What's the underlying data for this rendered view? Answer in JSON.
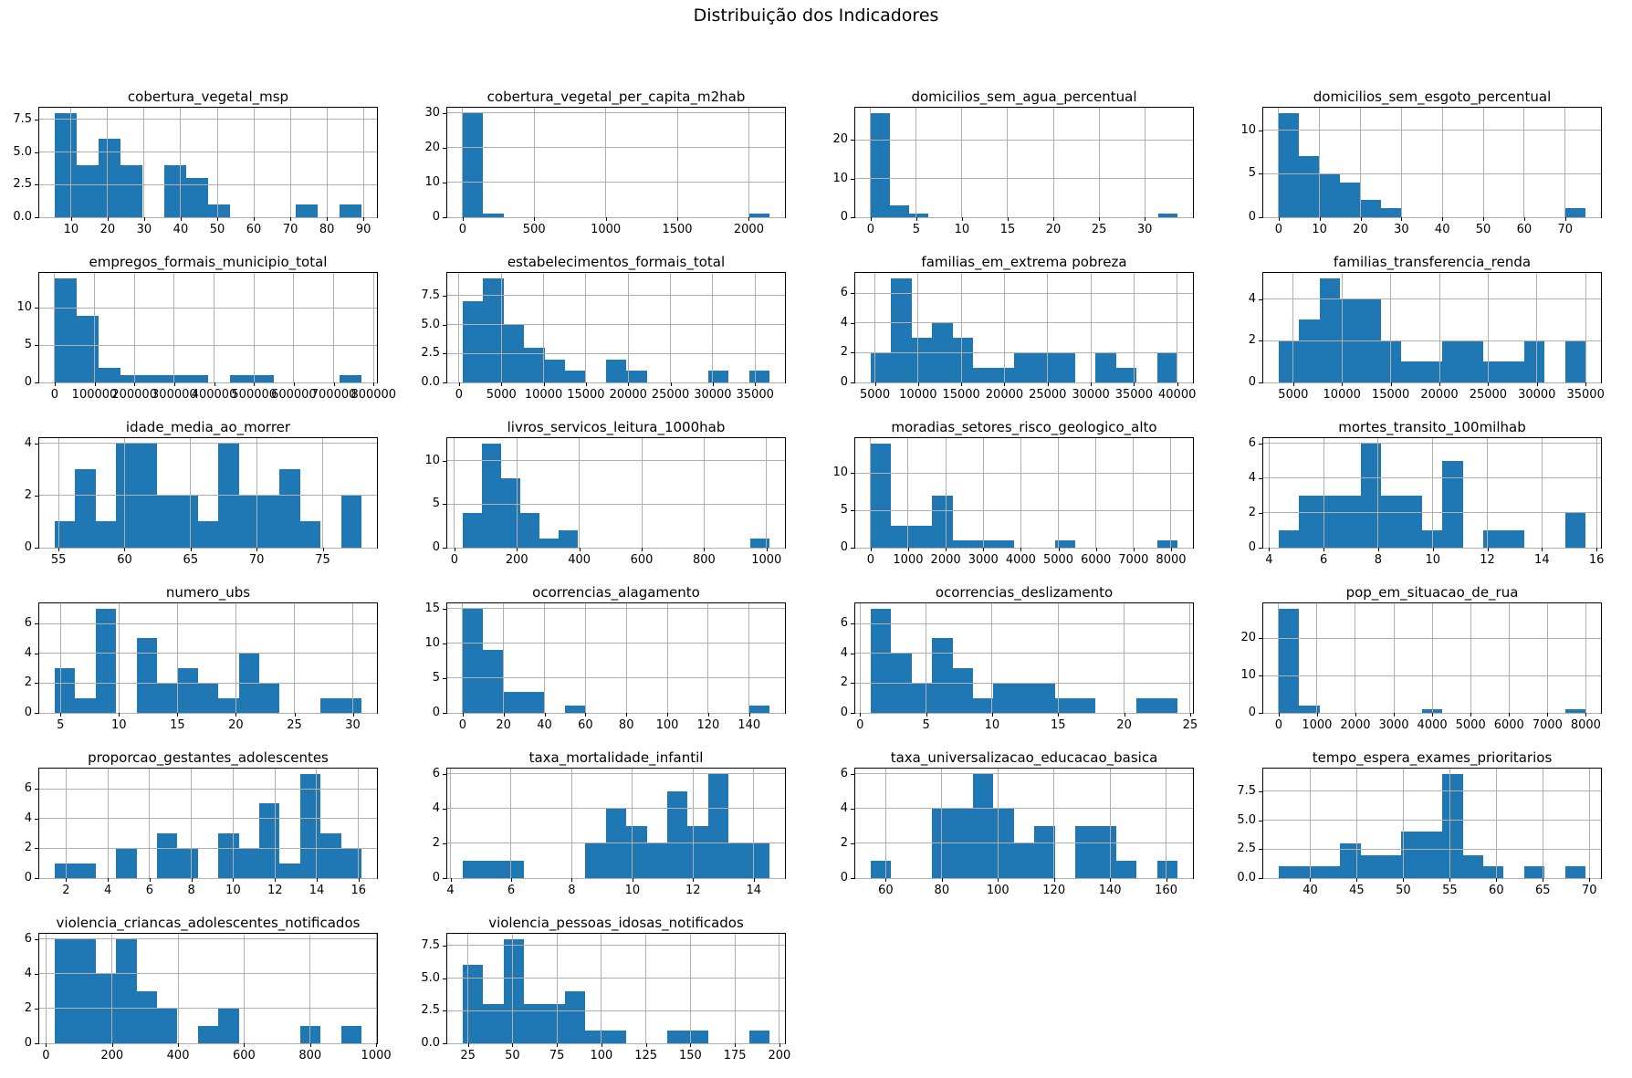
{
  "suptitle": "Distribuição dos Indicadores",
  "colors": {
    "bar": "#1f77b4",
    "grid": "#b0b0b0",
    "spine": "#000000",
    "background": "#ffffff",
    "text": "#000000"
  },
  "chart_data": [
    {
      "type": "bar",
      "title": "cobertura_vegetal_msp",
      "bin_start": 5.5,
      "bin_width": 6.0,
      "values": [
        8,
        4,
        6,
        4,
        0,
        4,
        3,
        1,
        0,
        0,
        0,
        1,
        0,
        1
      ],
      "x_ticks": [
        10,
        20,
        30,
        40,
        50,
        60,
        70,
        80,
        90
      ],
      "y_ticks": [
        0,
        2.5,
        5,
        7.5
      ],
      "y_tick_labels": [
        "0.0",
        "2.5",
        "5.0",
        "7.5"
      ]
    },
    {
      "type": "bar",
      "title": "cobertura_vegetal_per_capita_m2hab",
      "bin_start": 0,
      "bin_width": 143,
      "values": [
        30,
        1,
        0,
        0,
        0,
        0,
        0,
        0,
        0,
        0,
        0,
        0,
        0,
        0,
        1
      ],
      "x_ticks": [
        0,
        500,
        1000,
        1500,
        2000
      ],
      "y_ticks": [
        0,
        10,
        20,
        30
      ],
      "y_tick_labels": [
        "0",
        "10",
        "20",
        "30"
      ]
    },
    {
      "type": "bar",
      "title": "domicilios_sem_agua_percentual",
      "bin_start": 0,
      "bin_width": 2.1,
      "values": [
        27,
        3,
        1,
        0,
        0,
        0,
        0,
        0,
        0,
        0,
        0,
        0,
        0,
        0,
        0,
        1
      ],
      "x_ticks": [
        0,
        5,
        10,
        15,
        20,
        25,
        30
      ],
      "y_ticks": [
        0,
        10,
        20
      ],
      "y_tick_labels": [
        "0",
        "10",
        "20"
      ]
    },
    {
      "type": "bar",
      "title": "domicilios_sem_esgoto_percentual",
      "bin_start": 0,
      "bin_width": 5,
      "values": [
        12,
        7,
        5,
        4,
        2,
        1,
        0,
        0,
        0,
        0,
        0,
        0,
        0,
        0,
        1
      ],
      "x_ticks": [
        0,
        10,
        20,
        30,
        40,
        50,
        60,
        70
      ],
      "y_ticks": [
        0,
        5,
        10
      ],
      "y_tick_labels": [
        "0",
        "5",
        "10"
      ]
    },
    {
      "type": "bar",
      "title": "empregos_formais_municipio_total",
      "bin_start": 0,
      "bin_width": 55000,
      "values": [
        14,
        9,
        2,
        1,
        1,
        1,
        1,
        0,
        1,
        1,
        0,
        0,
        0,
        1
      ],
      "x_ticks": [
        0,
        100000,
        200000,
        300000,
        400000,
        500000,
        600000,
        700000,
        800000
      ],
      "y_ticks": [
        0,
        5,
        10
      ],
      "y_tick_labels": [
        "0",
        "5",
        "10"
      ]
    },
    {
      "type": "bar",
      "title": "estabelecimentos_formais_total",
      "bin_start": 420,
      "bin_width": 2420,
      "values": [
        7,
        9,
        5,
        3,
        2,
        1,
        0,
        2,
        1,
        0,
        0,
        0,
        1,
        0,
        1
      ],
      "x_ticks": [
        0,
        5000,
        10000,
        15000,
        20000,
        25000,
        30000,
        35000
      ],
      "y_ticks": [
        0,
        2.5,
        5,
        7.5
      ],
      "y_tick_labels": [
        "0.0",
        "2.5",
        "5.0",
        "7.5"
      ]
    },
    {
      "type": "bar",
      "title": "familias_em_extrema pobreza",
      "bin_start": 4500,
      "bin_width": 2370,
      "values": [
        2,
        7,
        3,
        4,
        3,
        1,
        1,
        2,
        2,
        2,
        0,
        2,
        1,
        0,
        2
      ],
      "x_ticks": [
        5000,
        10000,
        15000,
        20000,
        25000,
        30000,
        35000,
        40000
      ],
      "y_ticks": [
        0,
        2,
        4,
        6
      ],
      "y_tick_labels": [
        "0",
        "2",
        "4",
        "6"
      ]
    },
    {
      "type": "bar",
      "title": "familias_transferencia_renda",
      "bin_start": 3500,
      "bin_width": 2100,
      "values": [
        2,
        3,
        5,
        4,
        4,
        2,
        1,
        1,
        2,
        2,
        1,
        1,
        2,
        0,
        2
      ],
      "x_ticks": [
        5000,
        10000,
        15000,
        20000,
        25000,
        30000,
        35000
      ],
      "y_ticks": [
        0,
        2,
        4
      ],
      "y_tick_labels": [
        "0",
        "2",
        "4"
      ]
    },
    {
      "type": "bar",
      "title": "idade_media_ao_morrer",
      "bin_start": 54.7,
      "bin_width": 1.55,
      "values": [
        1,
        3,
        1,
        4,
        4,
        2,
        2,
        1,
        4,
        2,
        2,
        3,
        1,
        0,
        2
      ],
      "x_ticks": [
        55,
        60,
        65,
        70,
        75
      ],
      "y_ticks": [
        0,
        2,
        4
      ],
      "y_tick_labels": [
        "0",
        "2",
        "4"
      ]
    },
    {
      "type": "bar",
      "title": "livros_servicos_leitura_1000hab",
      "bin_start": 26,
      "bin_width": 61.5,
      "values": [
        4,
        12,
        8,
        4,
        1,
        2,
        0,
        0,
        0,
        0,
        0,
        0,
        0,
        0,
        0,
        1
      ],
      "x_ticks": [
        0,
        200,
        400,
        600,
        800,
        1000
      ],
      "y_ticks": [
        0,
        5,
        10
      ],
      "y_tick_labels": [
        "0",
        "5",
        "10"
      ]
    },
    {
      "type": "bar",
      "title": "moradias_setores_risco_geologico_alto",
      "bin_start": 0,
      "bin_width": 545,
      "values": [
        14,
        3,
        3,
        7,
        1,
        1,
        1,
        0,
        0,
        1,
        0,
        0,
        0,
        0,
        1
      ],
      "x_ticks": [
        0,
        1000,
        2000,
        3000,
        4000,
        5000,
        6000,
        7000,
        8000
      ],
      "y_ticks": [
        0,
        5,
        10
      ],
      "y_tick_labels": [
        "0",
        "5",
        "10"
      ]
    },
    {
      "type": "bar",
      "title": "mortes_transito_100milhab",
      "bin_start": 4.35,
      "bin_width": 0.75,
      "values": [
        1,
        3,
        3,
        3,
        6,
        3,
        3,
        1,
        5,
        0,
        1,
        1,
        0,
        0,
        2
      ],
      "x_ticks": [
        4,
        6,
        8,
        10,
        12,
        14,
        16
      ],
      "y_ticks": [
        0,
        2,
        4,
        6
      ],
      "y_tick_labels": [
        "0",
        "2",
        "4",
        "6"
      ]
    },
    {
      "type": "bar",
      "title": "numero_ubs",
      "bin_start": 4.5,
      "bin_width": 1.75,
      "values": [
        3,
        1,
        7,
        0,
        5,
        2,
        3,
        2,
        1,
        4,
        2,
        0,
        0,
        1,
        1
      ],
      "x_ticks": [
        5,
        10,
        15,
        20,
        25,
        30
      ],
      "y_ticks": [
        0,
        2,
        4,
        6
      ],
      "y_tick_labels": [
        "0",
        "2",
        "4",
        "6"
      ]
    },
    {
      "type": "bar",
      "title": "ocorrencias_alagamento",
      "bin_start": 0,
      "bin_width": 10,
      "values": [
        15,
        9,
        3,
        3,
        0,
        1,
        0,
        0,
        0,
        0,
        0,
        0,
        0,
        0,
        1
      ],
      "x_ticks": [
        0,
        20,
        40,
        60,
        80,
        100,
        120,
        140
      ],
      "y_ticks": [
        0,
        5,
        10,
        15
      ],
      "y_tick_labels": [
        "0",
        "5",
        "10",
        "15"
      ]
    },
    {
      "type": "bar",
      "title": "ocorrencias_deslizamento",
      "bin_start": 0.8,
      "bin_width": 1.55,
      "values": [
        7,
        4,
        2,
        5,
        3,
        1,
        2,
        2,
        2,
        1,
        1,
        0,
        0,
        1,
        1
      ],
      "x_ticks": [
        0,
        5,
        10,
        15,
        20,
        25
      ],
      "y_ticks": [
        0,
        2,
        4,
        6
      ],
      "y_tick_labels": [
        "0",
        "2",
        "4",
        "6"
      ]
    },
    {
      "type": "bar",
      "title": "pop_em_situacao_de_rua",
      "bin_start": 0,
      "bin_width": 533,
      "values": [
        28,
        2,
        0,
        0,
        0,
        0,
        0,
        1,
        0,
        0,
        0,
        0,
        0,
        0,
        1
      ],
      "x_ticks": [
        0,
        1000,
        2000,
        3000,
        4000,
        5000,
        6000,
        7000,
        8000
      ],
      "y_ticks": [
        0,
        10,
        20
      ],
      "y_tick_labels": [
        "0",
        "10",
        "20"
      ]
    },
    {
      "type": "bar",
      "title": "proporcao_gestantes_adolescentes",
      "bin_start": 1.45,
      "bin_width": 0.98,
      "values": [
        1,
        1,
        0,
        2,
        0,
        3,
        2,
        0,
        3,
        2,
        5,
        1,
        7,
        3,
        2
      ],
      "x_ticks": [
        2,
        4,
        6,
        8,
        10,
        12,
        14,
        16
      ],
      "y_ticks": [
        0,
        2,
        4,
        6
      ],
      "y_tick_labels": [
        "0",
        "2",
        "4",
        "6"
      ]
    },
    {
      "type": "bar",
      "title": "taxa_mortalidade_infantil",
      "bin_start": 4.4,
      "bin_width": 0.675,
      "values": [
        1,
        1,
        1,
        0,
        0,
        0,
        2,
        4,
        3,
        2,
        5,
        3,
        6,
        2,
        2
      ],
      "x_ticks": [
        4,
        6,
        8,
        10,
        12,
        14
      ],
      "y_ticks": [
        0,
        2,
        4,
        6
      ],
      "y_tick_labels": [
        "0",
        "2",
        "4",
        "6"
      ]
    },
    {
      "type": "bar",
      "title": "taxa_universalizacao_educacao_basica",
      "bin_start": 54.6,
      "bin_width": 7.3,
      "values": [
        1,
        0,
        0,
        4,
        4,
        6,
        4,
        2,
        3,
        0,
        3,
        3,
        1,
        0,
        1
      ],
      "x_ticks": [
        60,
        80,
        100,
        120,
        140,
        160
      ],
      "y_ticks": [
        0,
        2,
        4,
        6
      ],
      "y_tick_labels": [
        "0",
        "2",
        "4",
        "6"
      ]
    },
    {
      "type": "bar",
      "title": "tempo_espera_exames_prioritarios",
      "bin_start": 36.6,
      "bin_width": 2.2,
      "values": [
        1,
        1,
        1,
        3,
        2,
        2,
        4,
        4,
        9,
        2,
        1,
        0,
        1,
        0,
        1
      ],
      "x_ticks": [
        40,
        45,
        50,
        55,
        60,
        65,
        70
      ],
      "y_ticks": [
        0,
        2.5,
        5,
        7.5
      ],
      "y_tick_labels": [
        "0.0",
        "2.5",
        "5.0",
        "7.5"
      ]
    },
    {
      "type": "bar",
      "title": "violencia_criancas_adolescentes_notificados",
      "bin_start": 26,
      "bin_width": 62,
      "values": [
        6,
        6,
        4,
        6,
        3,
        2,
        0,
        1,
        2,
        0,
        0,
        0,
        1,
        0,
        1
      ],
      "x_ticks": [
        0,
        200,
        400,
        600,
        800,
        1000
      ],
      "y_ticks": [
        0,
        2,
        4,
        6
      ],
      "y_tick_labels": [
        "0",
        "2",
        "4",
        "6"
      ]
    },
    {
      "type": "bar",
      "title": "violencia_pessoas_idosas_notificados",
      "bin_start": 22,
      "bin_width": 11.5,
      "values": [
        6,
        3,
        8,
        3,
        3,
        4,
        1,
        1,
        0,
        0,
        1,
        1,
        0,
        0,
        1
      ],
      "x_ticks": [
        25,
        50,
        75,
        100,
        125,
        150,
        175,
        200
      ],
      "y_ticks": [
        0,
        2.5,
        5,
        7.5
      ],
      "y_tick_labels": [
        "0.0",
        "2.5",
        "5.0",
        "7.5"
      ]
    }
  ]
}
